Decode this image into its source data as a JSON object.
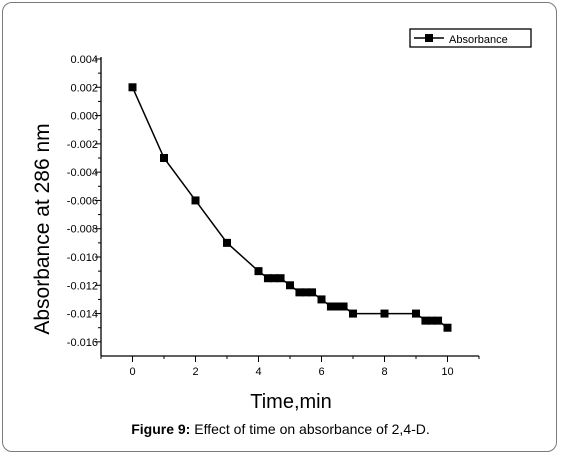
{
  "chart_data": {
    "type": "line",
    "title": "",
    "xlabel": "Time,min",
    "ylabel": "Absorbance at 286 nm",
    "xlim": [
      -1,
      11
    ],
    "ylim": [
      -0.017,
      0.004
    ],
    "x_ticks": [
      0,
      2,
      4,
      6,
      8,
      10
    ],
    "x_tick_labels": [
      "0",
      "2",
      "4",
      "6",
      "8",
      "10"
    ],
    "y_ticks": [
      0.004,
      0.002,
      0.0,
      -0.002,
      -0.004,
      -0.006,
      -0.008,
      -0.01,
      -0.012,
      -0.014,
      -0.016
    ],
    "y_tick_labels": [
      "0.004",
      "0.002",
      "0.000",
      "-0.002",
      "-0.004",
      "-0.006",
      "-0.008",
      "-0.010",
      "-0.012",
      "-0.014",
      "-0.016"
    ],
    "grid": false,
    "legend_position": "top-right",
    "series": [
      {
        "name": "Absorbance",
        "color": "#000000",
        "marker": "square",
        "x": [
          0,
          1,
          2,
          3,
          4,
          4.3,
          4.5,
          4.7,
          5,
          5.3,
          5.5,
          5.7,
          6,
          6.3,
          6.5,
          6.7,
          7,
          8,
          9,
          9.3,
          9.5,
          9.7,
          10
        ],
        "y": [
          0.002,
          -0.003,
          -0.006,
          -0.009,
          -0.011,
          -0.0115,
          -0.0115,
          -0.0115,
          -0.012,
          -0.0125,
          -0.0125,
          -0.0125,
          -0.013,
          -0.0135,
          -0.0135,
          -0.0135,
          -0.014,
          -0.014,
          -0.014,
          -0.0145,
          -0.0145,
          -0.0145,
          -0.015
        ]
      }
    ]
  },
  "caption": {
    "label": "Figure 9:",
    "text": " Effect of time on absorbance of 2,4-D."
  }
}
